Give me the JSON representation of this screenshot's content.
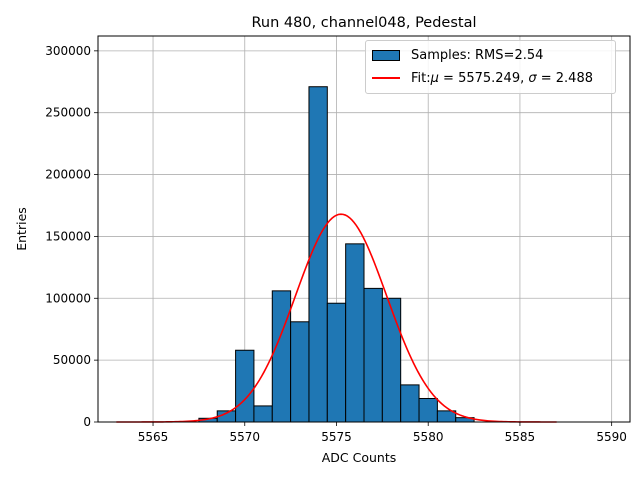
{
  "chart_data": {
    "type": "bar",
    "title": "Run 480, channel048, Pedestal",
    "xlabel": "ADC Counts",
    "ylabel": "Entries",
    "xlim": [
      5562,
      5591
    ],
    "ylim": [
      0,
      312000
    ],
    "grid": true,
    "xticks": [
      5565,
      5570,
      5575,
      5580,
      5585,
      5590
    ],
    "yticks": [
      0,
      50000,
      100000,
      150000,
      200000,
      250000,
      300000
    ],
    "bar_color": "#1f77b4",
    "fit_color": "#ff0000",
    "bin_width": 1,
    "bins": [
      {
        "x": 5568,
        "count": 3000
      },
      {
        "x": 5569,
        "count": 9000
      },
      {
        "x": 5570,
        "count": 58000
      },
      {
        "x": 5571,
        "count": 13000
      },
      {
        "x": 5572,
        "count": 106000
      },
      {
        "x": 5573,
        "count": 81000
      },
      {
        "x": 5574,
        "count": 271000
      },
      {
        "x": 5575,
        "count": 96000
      },
      {
        "x": 5576,
        "count": 144000
      },
      {
        "x": 5577,
        "count": 108000
      },
      {
        "x": 5578,
        "count": 100000
      },
      {
        "x": 5579,
        "count": 30000
      },
      {
        "x": 5580,
        "count": 19000
      },
      {
        "x": 5581,
        "count": 9000
      },
      {
        "x": 5582,
        "count": 3500
      }
    ],
    "fit": {
      "mu": 5575.249,
      "sigma": 2.488,
      "amplitude": 168000,
      "x_range": [
        5563,
        5587
      ]
    },
    "legend": {
      "placement": "top-right",
      "samples_prefix": "Samples: RMS=",
      "samples_rms": "2.54",
      "fit_prefix": "Fit: ",
      "fit_mu_symbol": "μ",
      "fit_mu_text": " = 5575.249, ",
      "fit_sigma_symbol": "σ",
      "fit_sigma_text": " = 2.488"
    }
  }
}
